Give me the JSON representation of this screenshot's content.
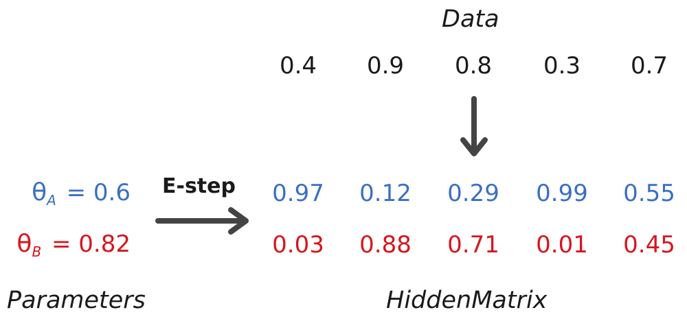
{
  "title": "Data",
  "data_values": [
    "0.4",
    "0.9",
    "0.8",
    "0.3",
    "0.7"
  ],
  "parameters": {
    "theta_a": {
      "symbol": "θ",
      "subscript": "A",
      "rest": " = 0.6",
      "color": "#3a6fc4"
    },
    "theta_b": {
      "symbol": "θ",
      "subscript": "B",
      "rest": " = 0.82",
      "color": "#d6161e"
    }
  },
  "estep_label": "E-step",
  "hidden_matrix": {
    "row_a": [
      "0.97",
      "0.12",
      "0.29",
      "0.99",
      "0.55"
    ],
    "row_b": [
      "0.03",
      "0.88",
      "0.71",
      "0.01",
      "0.45"
    ]
  },
  "labels": {
    "parameters": "Parameters",
    "hidden_matrix": "HiddenMatrix"
  },
  "colors": {
    "row_a": "#3a6fc4",
    "row_b": "#d6161e",
    "arrow": "#444444"
  }
}
